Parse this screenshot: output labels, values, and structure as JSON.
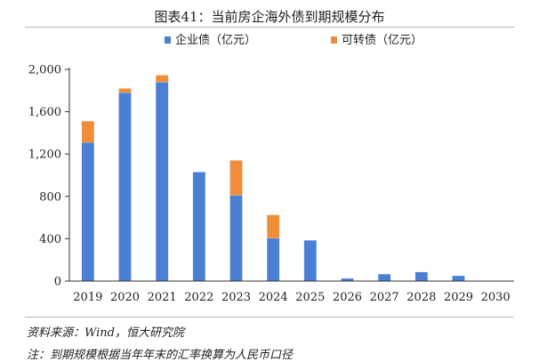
{
  "title": "图表41：当前房企海外债到期规模分布",
  "chart_data": {
    "type": "bar",
    "stacked": true,
    "categories": [
      "2019",
      "2020",
      "2021",
      "2022",
      "2023",
      "2024",
      "2025",
      "2026",
      "2027",
      "2028",
      "2029",
      "2030"
    ],
    "series": [
      {
        "name": "企业债（亿元）",
        "color": "#4a7fd4",
        "values": [
          1310,
          1780,
          1880,
          1030,
          810,
          405,
          385,
          25,
          65,
          85,
          50,
          0
        ]
      },
      {
        "name": "可转债（亿元）",
        "color": "#f08c3a",
        "values": [
          200,
          40,
          65,
          0,
          330,
          220,
          0,
          0,
          0,
          0,
          0,
          0
        ]
      }
    ],
    "ylim": [
      0,
      2000
    ],
    "yticks": [
      0,
      400,
      800,
      1200,
      1600,
      2000
    ],
    "ytick_labels": [
      "0",
      "400",
      "800",
      "1,200",
      "1,600",
      "2,000"
    ],
    "grid": false,
    "legend_position": "top"
  },
  "source": "资料来源：Wind，恒大研究院",
  "note": "注：到期规模根据当年年末的汇率换算为人民币口径"
}
